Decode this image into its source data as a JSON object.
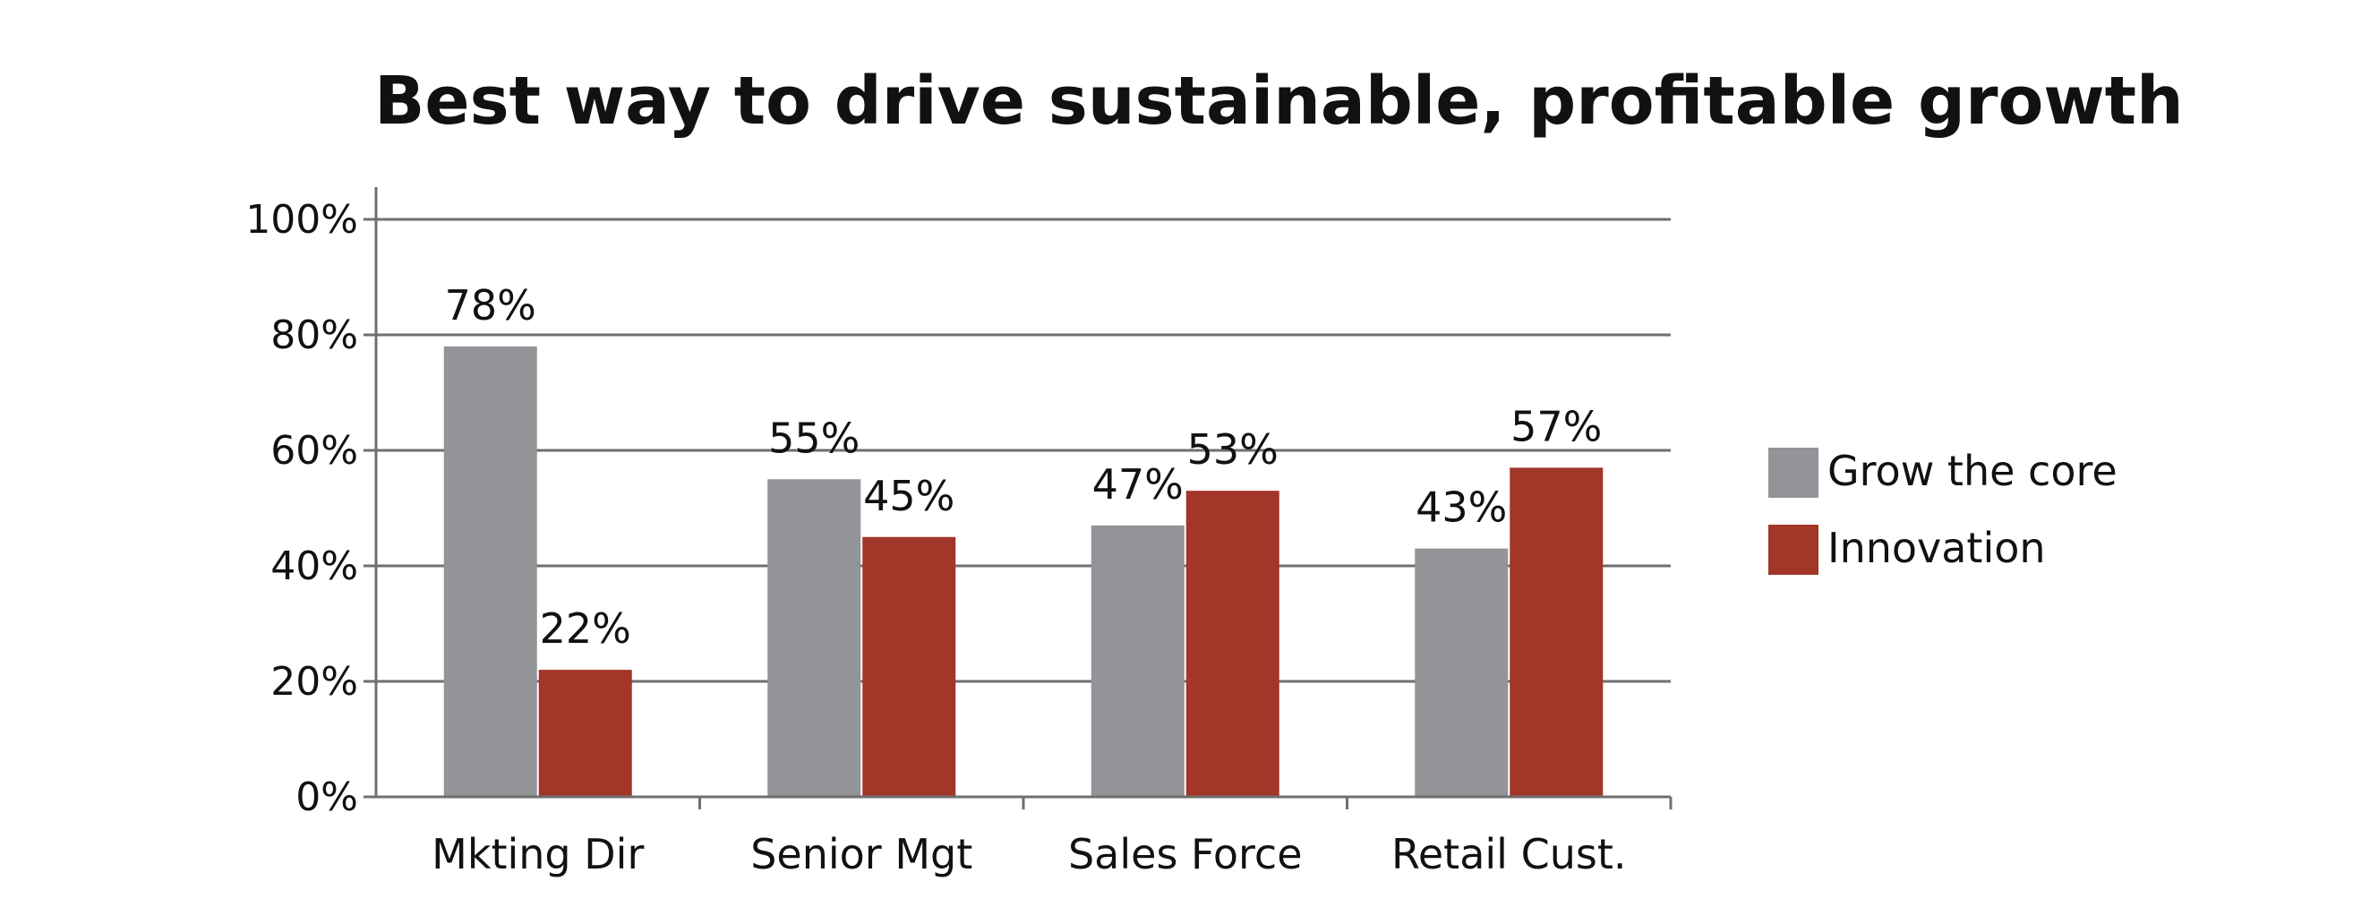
{
  "chart_data": {
    "type": "bar",
    "title": "Best way to drive sustainable, profitable growth",
    "xlabel": "",
    "ylabel": "",
    "categories": [
      "Mkting Dir",
      "Senior Mgt",
      "Sales Force",
      "Retail Cust."
    ],
    "series": [
      {
        "name": "Grow the core",
        "values": [
          78,
          55,
          47,
          43
        ],
        "labels": [
          "78%",
          "55%",
          "47%",
          "43%"
        ],
        "color": "#939498"
      },
      {
        "name": "Innovation",
        "values": [
          22,
          45,
          53,
          57
        ],
        "labels": [
          "22%",
          "45%",
          "53%",
          "57%"
        ],
        "color": "#a23628"
      }
    ],
    "ylim": [
      0,
      100
    ],
    "yticks": [
      0,
      20,
      40,
      60,
      80,
      100
    ],
    "ytick_labels": [
      "0%",
      "20%",
      "40%",
      "60%",
      "80%",
      "100%"
    ],
    "grid": true,
    "legend": "right",
    "grid_color": "#6f6f6f"
  }
}
